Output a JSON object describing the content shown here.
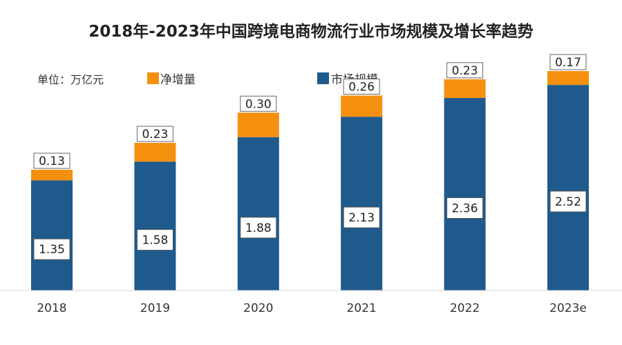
{
  "chart_data": {
    "type": "bar",
    "stacked": true,
    "title": "2018年-2023年中国跨境电商物流行业市场规模及增长率趋势",
    "unit_label": "单位：万亿元",
    "categories": [
      "2018",
      "2019",
      "2020",
      "2021",
      "2022",
      "2023e"
    ],
    "series": [
      {
        "name": "市场规模",
        "color": "#1F5A8C",
        "values": [
          1.35,
          1.58,
          1.88,
          2.13,
          2.36,
          2.52
        ],
        "value_labels": [
          "1.35",
          "1.58",
          "1.88",
          "2.13",
          "2.36",
          "2.52"
        ]
      },
      {
        "name": "净增量",
        "color": "#F5900F",
        "values": [
          0.13,
          0.23,
          0.3,
          0.26,
          0.23,
          0.17
        ],
        "value_labels": [
          "0.13",
          "0.23",
          "0.30",
          "0.26",
          "0.23",
          "0.17"
        ]
      }
    ],
    "legend_order": [
      "净增量",
      "市场规模"
    ],
    "legend_position": "top-left",
    "ylim": [
      0,
      2.8
    ],
    "grid": false
  }
}
